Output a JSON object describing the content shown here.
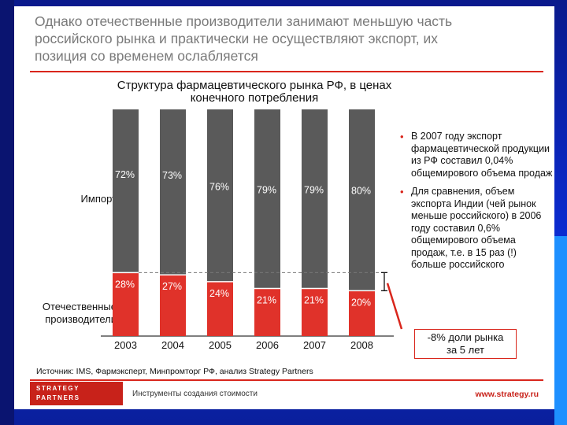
{
  "slide": {
    "title_lines": [
      "Однако отечественные производители занимают меньшую часть",
      "российского рынка и практически не осуществляют экспорт, их",
      "позиция со временем ослабляется"
    ]
  },
  "chart_data": {
    "type": "bar",
    "stacked": true,
    "title_lines": [
      "Структура фармацевтического рынка РФ, в ценах",
      "конечного потребления"
    ],
    "categories": [
      "2003",
      "2004",
      "2005",
      "2006",
      "2007",
      "2008"
    ],
    "series": [
      {
        "name": "Импорт",
        "values": [
          72,
          73,
          76,
          79,
          79,
          80
        ],
        "labels": [
          "72%",
          "73%",
          "76%",
          "79%",
          "79%",
          "80%"
        ],
        "color": "#5a5a5a"
      },
      {
        "name": "Отечественные производители",
        "name_lines": [
          "Отечественные",
          "производители"
        ],
        "values": [
          28,
          27,
          24,
          21,
          21,
          20
        ],
        "labels": [
          "28%",
          "27%",
          "24%",
          "21%",
          "21%",
          "20%"
        ],
        "color": "#e0322a"
      }
    ],
    "ylim": [
      0,
      100
    ],
    "xlabel": "",
    "ylabel": ""
  },
  "bullets": [
    "В 2007 году экспорт фармацевтической продукции из РФ составил 0,04% общемирового объема продаж",
    "Для сравнения, объем экспорта Индии (чей рынок меньше российского) в 2006 году составил 0,6% общемирового объема продаж, т.е. в 15 раз (!) больше российского"
  ],
  "callout": {
    "lines": [
      "-8% доли рынка",
      "за 5 лет"
    ]
  },
  "source": "Источник: IMS, Фармэксперт, Минпромторг РФ, анализ Strategy Partners",
  "footer": {
    "logo_lines": [
      "STRATEGY",
      "PARTNERS"
    ],
    "tagline": "Инструменты создания стоимости",
    "website": "www.strategy.ru"
  },
  "colors": {
    "accent": "#d9261c",
    "import": "#5a5a5a",
    "domestic": "#e0322a"
  }
}
